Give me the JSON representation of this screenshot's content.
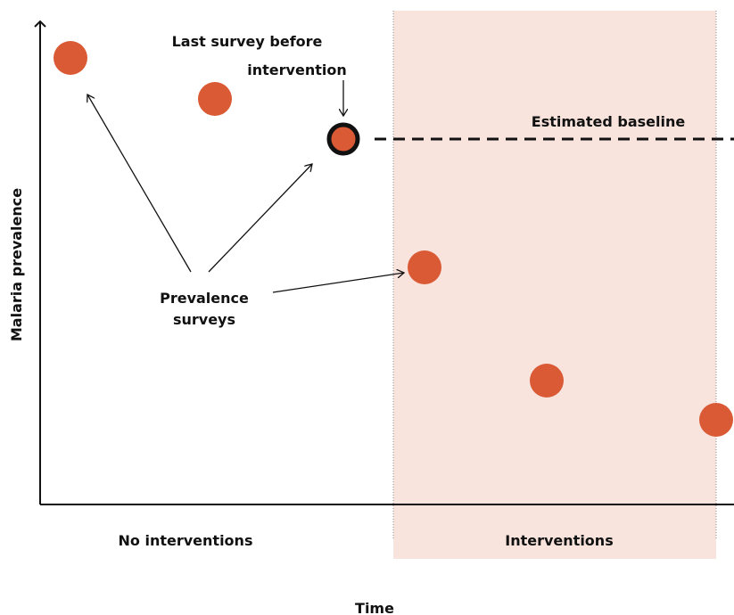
{
  "axes": {
    "y_label": "Malaria prevalence",
    "x_label": "Time"
  },
  "periods": {
    "before": "No interventions",
    "after": "Interventions"
  },
  "annotations": {
    "last_survey_line1": "Last survey before",
    "last_survey_line2": "intervention",
    "baseline": "Estimated baseline",
    "surveys_line1": "Prevalence",
    "surveys_line2": "surveys"
  },
  "colors": {
    "point": "#d95a35",
    "shade": "#f9e3dd",
    "axis": "#111111"
  },
  "icons": {
    "highlighted_point": "ringed-circle",
    "baseline": "dashed-line"
  }
}
